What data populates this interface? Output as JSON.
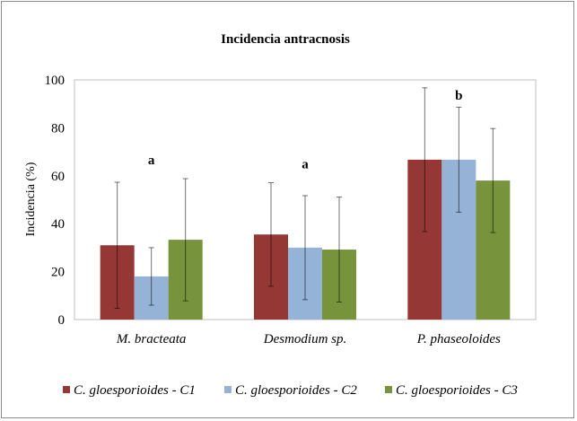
{
  "chart_data": {
    "type": "bar",
    "title": "Incidencia antracnosis",
    "xlabel": "",
    "ylabel": "Incidencia (%)",
    "ylim": [
      0,
      100
    ],
    "yticks": [
      0,
      20,
      40,
      60,
      80,
      100
    ],
    "grid": false,
    "legend_position": "bottom",
    "categories": [
      "M. bracteata",
      "Desmodium sp.",
      "P. phaseoloides"
    ],
    "series": [
      {
        "name": "C. gloesporioides - C1",
        "color": "#953735",
        "values": [
          31,
          35.5,
          66.7
        ],
        "errors": [
          26.3,
          21.6,
          30
        ]
      },
      {
        "name": "C. gloesporioides - C2",
        "color": "#95B3D7",
        "values": [
          18,
          30,
          66.7
        ],
        "errors": [
          12,
          21.7,
          21.9
        ]
      },
      {
        "name": "C. gloesporioides - C3",
        "color": "#77933C",
        "values": [
          33.3,
          29.2,
          58
        ],
        "errors": [
          25.5,
          21.9,
          21.7
        ]
      }
    ],
    "annotations": [
      {
        "category": "M. bracteata",
        "text": "a"
      },
      {
        "category": "Desmodium sp.",
        "text": "a"
      },
      {
        "category": "P. phaseoloides",
        "text": "b"
      }
    ]
  }
}
